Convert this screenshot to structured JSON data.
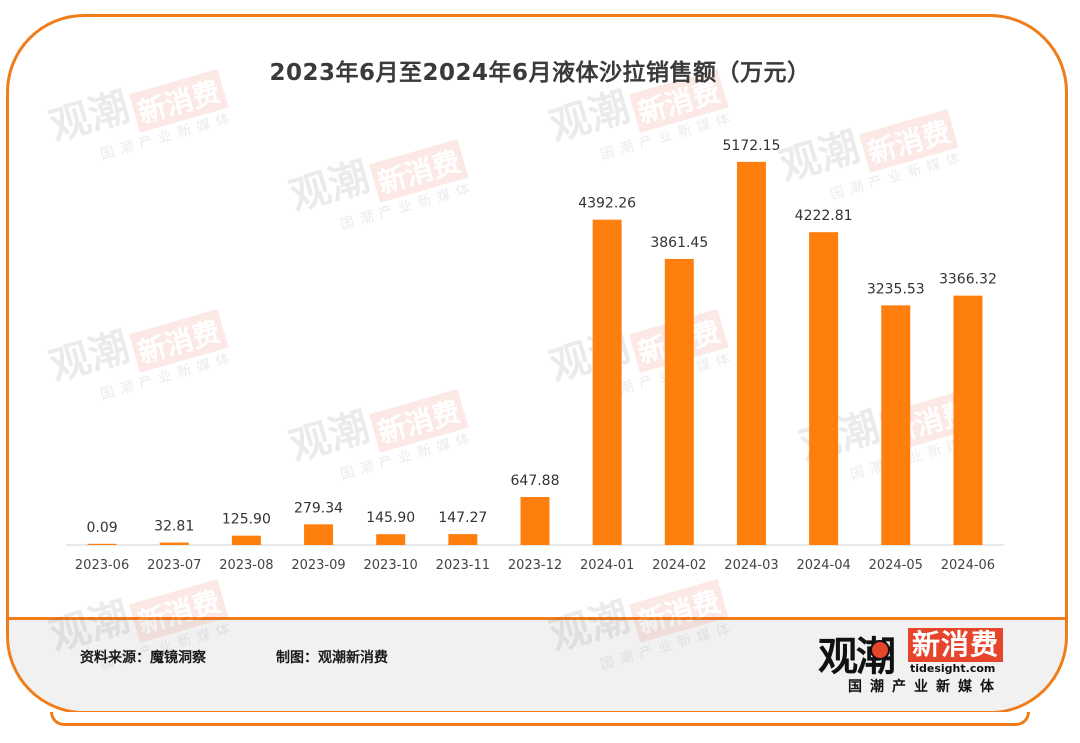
{
  "chart_data": {
    "type": "bar",
    "title": "2023年6月至2024年6月液体沙拉销售额（万元）",
    "categories": [
      "2023-06",
      "2023-07",
      "2023-08",
      "2023-09",
      "2023-10",
      "2023-11",
      "2023-12",
      "2024-01",
      "2024-02",
      "2024-03",
      "2024-04",
      "2024-05",
      "2024-06"
    ],
    "values": [
      0.09,
      32.81,
      125.9,
      279.34,
      145.9,
      147.27,
      647.88,
      4392.26,
      3861.45,
      5172.15,
      4222.81,
      3235.53,
      3366.32
    ],
    "value_labels": [
      "0.09",
      "32.81",
      "125.90",
      "279.34",
      "145.90",
      "147.27",
      "647.88",
      "4392.26",
      "3861.45",
      "5172.15",
      "4222.81",
      "3235.53",
      "3366.32"
    ],
    "ylim": [
      0,
      5400
    ],
    "bar_color": "#ff7f0e",
    "grid": false
  },
  "footer": {
    "source": "资料来源：魔镜洞察",
    "credit": "制图：观潮新消费"
  },
  "brand": {
    "name_main": "观潮",
    "name_box": "新消费",
    "domain": "tidesight.com",
    "tagline": "国潮产业新媒体",
    "accent_color": "#f07c1a",
    "logo_red": "#e6452b"
  }
}
